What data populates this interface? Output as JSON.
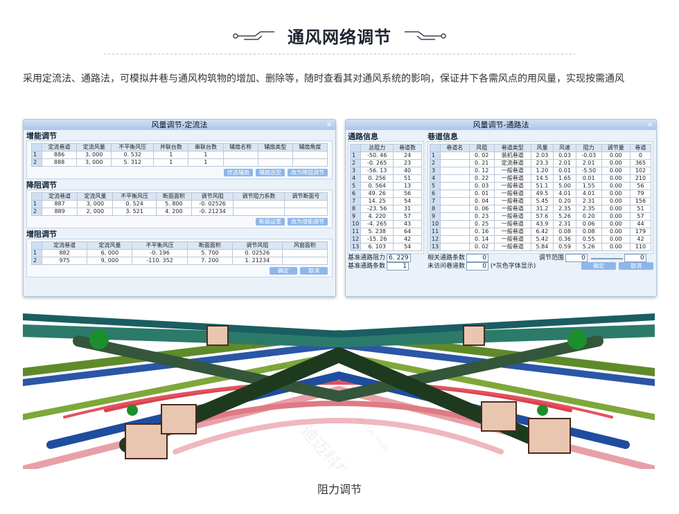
{
  "header": {
    "title": "通风网络调节"
  },
  "intro": "采用定流法、通路法，可模拟井巷与通风构筑物的增加、删除等，随时查看其对通风系统的影响，保证井下各需风点的用风量，实现按需通风",
  "dialog1": {
    "title": "风量调节-定流法",
    "close": "×",
    "sections": [
      {
        "title": "增能调节",
        "columns": [
          "定流巷道",
          "定流风量",
          "不平衡风压",
          "并联台数",
          "串联台数",
          "辅扇名称",
          "辅扇类型",
          "辅扇角度"
        ],
        "rows": [
          [
            "1",
            "886",
            "3, 000",
            "0. 532",
            "1",
            "1"
          ],
          [
            "2",
            "888",
            "3, 000",
            "5. 312",
            "1",
            "1"
          ]
        ],
        "buttons": [
          "优选辅扇",
          "辅扇选型",
          "改为降阻调节"
        ]
      },
      {
        "title": "降阻调节",
        "columns": [
          "定流巷道",
          "定流风量",
          "不平衡风压",
          "断面面积",
          "调节风阻",
          "调节阻力系数",
          "调节断面号"
        ],
        "rows": [
          [
            "1",
            "887",
            "3, 000",
            "0. 524",
            "5. 800",
            "-0. 02526"
          ],
          [
            "2",
            "889",
            "2, 000",
            "3. 521",
            "4. 200",
            "-0. 21234"
          ]
        ],
        "buttons": [
          "断面设置",
          "改为增能调节"
        ]
      },
      {
        "title": "增阻调节",
        "columns": [
          "定流巷道",
          "定流风量",
          "不平衡风压",
          "断面面积",
          "调节风阻",
          "风窗面积"
        ],
        "rows": [
          [
            "1",
            "882",
            "6, 000",
            "-0. 196",
            "5. 700",
            "0. 02526"
          ],
          [
            "2",
            "975",
            "9, 000",
            "-110. 352",
            "7. 200",
            "1. 21234"
          ]
        ],
        "buttons": [
          "确定",
          "取消"
        ]
      }
    ]
  },
  "dialog2": {
    "title": "风量调节-通路法",
    "close": "×",
    "paths": {
      "title": "通路信息",
      "columns": [
        "总阻力",
        "巷道数"
      ],
      "rows": [
        [
          "1",
          "-50. 46",
          "24"
        ],
        [
          "2",
          "-0. 265",
          "23"
        ],
        [
          "3",
          "-56. 13",
          "40"
        ],
        [
          "4",
          "0. 256",
          "51"
        ],
        [
          "5",
          "0. 564",
          "13"
        ],
        [
          "6",
          "49. 26",
          "56"
        ],
        [
          "7",
          "14. 25",
          "54"
        ],
        [
          "8",
          "-23. 56",
          "31"
        ],
        [
          "9",
          "4. 220",
          "57"
        ],
        [
          "10",
          "-4. 265",
          "43"
        ],
        [
          "11",
          "5. 238",
          "64"
        ],
        [
          "12",
          "-15. 26",
          "42"
        ],
        [
          "13",
          "6. 103",
          "54"
        ]
      ]
    },
    "roadways": {
      "title": "巷道信息",
      "columns": [
        "巷道名",
        "风阻",
        "巷道类型",
        "风量",
        "风速",
        "阻力",
        "调节量",
        "巷道"
      ],
      "rows": [
        [
          "1",
          null,
          "0. 02",
          "装机巷道",
          "2.03",
          "0.03",
          "-0.03",
          "0.00",
          "0"
        ],
        [
          "2",
          null,
          "0. 21",
          "定流巷道",
          "23.3",
          "2.01",
          "2.01",
          "0.00",
          "365"
        ],
        [
          "3",
          null,
          "0. 12",
          "一般巷道",
          "1.20",
          "0.01",
          "-5.50",
          "0.00",
          "102"
        ],
        [
          "4",
          null,
          "0. 22",
          "一般巷道",
          "14.5",
          "1.65",
          "0.01",
          "0.00",
          "210"
        ],
        [
          "5",
          null,
          "0. 03",
          "一般巷道",
          "51.1",
          "5.00",
          "1.55",
          "0.00",
          "56"
        ],
        [
          "6",
          null,
          "0. 01",
          "一般巷道",
          "49.5",
          "4.01",
          "4.01",
          "0.00",
          "79"
        ],
        [
          "7",
          null,
          "0. 04",
          "一般巷道",
          "5.45",
          "0.20",
          "2.31",
          "0.00",
          "156"
        ],
        [
          "8",
          null,
          "0. 06",
          "一般巷道",
          "31.2",
          "2.35",
          "2.35",
          "0.00",
          "51"
        ],
        [
          "9",
          null,
          "0. 23",
          "一般巷道",
          "57.6",
          "5.26",
          "0.20",
          "0.00",
          "57"
        ],
        [
          "10",
          null,
          "0. 25",
          "一般巷道",
          "43.9",
          "2.31",
          "0.06",
          "0.00",
          "44"
        ],
        [
          "11",
          null,
          "0. 16",
          "一般巷道",
          "6.42",
          "0.08",
          "0.08",
          "0.00",
          "179"
        ],
        [
          "12",
          null,
          "0. 14",
          "一般巷道",
          "5.42",
          "0.36",
          "0.55",
          "0.00",
          "42"
        ],
        [
          "13",
          null,
          "0. 02",
          "一般巷道",
          "5.84",
          "0.59",
          "5.26",
          "0.00",
          "110"
        ]
      ]
    },
    "base_resistance": {
      "label": "基准通路阻力",
      "value": "6. 229"
    },
    "base_count": {
      "label": "基准通路条数",
      "value": "1"
    },
    "related_count": {
      "label": "相关通路条数",
      "value": "0"
    },
    "range": {
      "label": "调节范围",
      "min": "0",
      "max": "0"
    },
    "unvisited": {
      "label": "未访问巷道数",
      "value": "0",
      "note": "(*灰色字体显示)"
    },
    "buttons": [
      "确定",
      "取消"
    ]
  },
  "image": {
    "watermark": "迪迈科技",
    "watermark_en": "DIGITAL MINE"
  },
  "caption": "阻力调节"
}
